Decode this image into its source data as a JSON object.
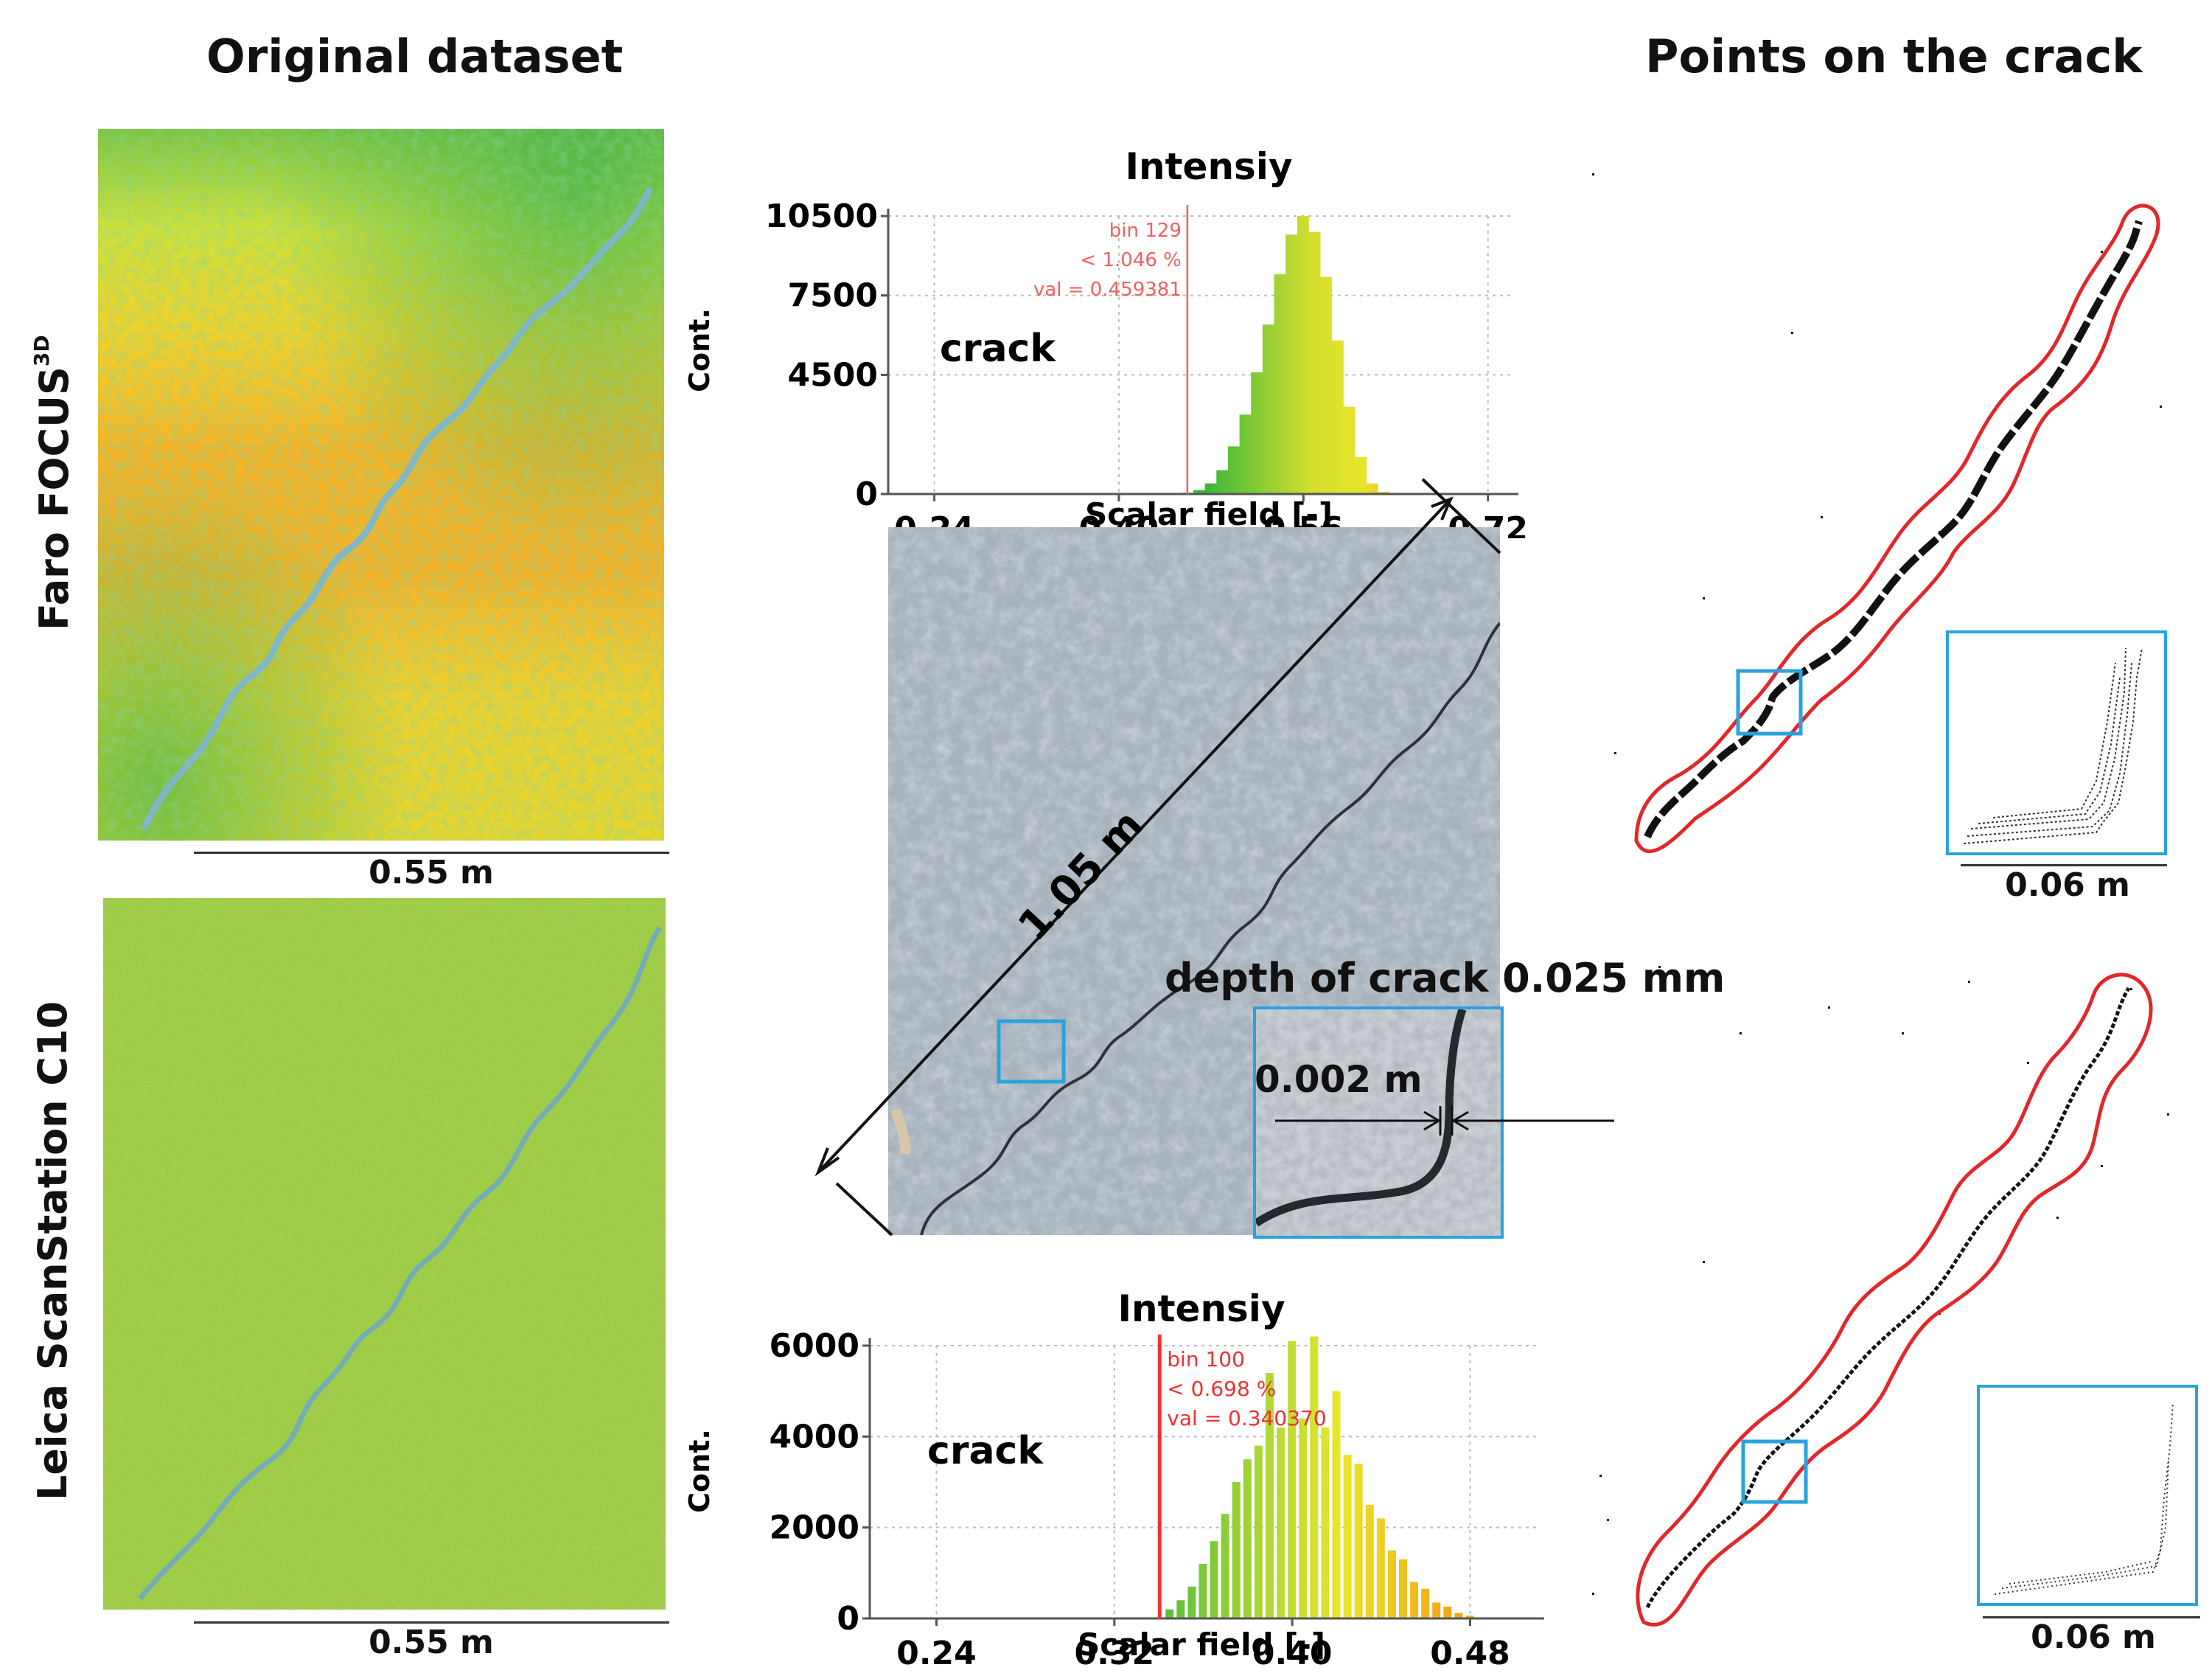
{
  "columns": {
    "left_title": "Original dataset",
    "right_title": "Points on the crack"
  },
  "rows": {
    "top_scanner": "Faro FOCUS",
    "top_scanner_sup": "3D",
    "bottom_scanner": "Leica ScanStation C10"
  },
  "scalebars": {
    "left_top": "0.55 m",
    "left_bottom": "0.55 m",
    "right_top": "0.06 m",
    "right_bottom": "0.06 m"
  },
  "photo": {
    "length_label": "1.05 m",
    "depth_label": "depth of crack  0.025  mm",
    "width_label": "0.002 m"
  },
  "colors": {
    "accent_blue": "#29a3dd",
    "outline_red": "#e0282b",
    "histogram_green": "#3fb83a",
    "histogram_yellow": "#e8e42a",
    "histogram_orange": "#f4a417"
  },
  "chart_data": [
    {
      "type": "bar",
      "title": "Intensiy",
      "xlabel": "Scalar field  [-]",
      "ylabel": "Cont.",
      "xlim": [
        0.2,
        0.74
      ],
      "ylim": [
        0,
        10500
      ],
      "x_ticks": [
        "0.24",
        "0.40",
        "0.56",
        "0.72"
      ],
      "y_ticks": [
        "10500",
        "7500",
        "4500",
        "0"
      ],
      "annotation": "crack",
      "threshold": {
        "x": 0.459381,
        "lines": [
          "bin 129",
          "< 1.046 %",
          "val = 0.459381"
        ]
      },
      "x": [
        0.46,
        0.47,
        0.48,
        0.49,
        0.5,
        0.51,
        0.52,
        0.53,
        0.54,
        0.55,
        0.56,
        0.57,
        0.58,
        0.59,
        0.6,
        0.61,
        0.62,
        0.63
      ],
      "values": [
        50,
        150,
        400,
        900,
        1800,
        3000,
        4600,
        6400,
        8300,
        9800,
        10500,
        9900,
        8200,
        5800,
        3300,
        1400,
        400,
        80
      ]
    },
    {
      "type": "bar",
      "title": "Intensiy",
      "xlabel": "Scalar field  [-]",
      "ylabel": "Cont.",
      "xlim": [
        0.21,
        0.51
      ],
      "ylim": [
        0,
        6000
      ],
      "x_ticks": [
        "0.24",
        "0.32",
        "0.40",
        "0.48"
      ],
      "y_ticks": [
        "6000",
        "4000",
        "2000",
        "0"
      ],
      "annotation": "crack",
      "threshold": {
        "x": 0.34037,
        "lines": [
          "bin 100",
          "< 0.698 %",
          "val = 0.340370"
        ]
      },
      "x": [
        0.345,
        0.35,
        0.355,
        0.36,
        0.365,
        0.37,
        0.375,
        0.38,
        0.385,
        0.39,
        0.395,
        0.4,
        0.405,
        0.41,
        0.415,
        0.42,
        0.425,
        0.43,
        0.435,
        0.44,
        0.445,
        0.45,
        0.455,
        0.46,
        0.465,
        0.47,
        0.475,
        0.48
      ],
      "values": [
        200,
        400,
        700,
        1200,
        1700,
        2300,
        3000,
        3500,
        3800,
        5400,
        4200,
        6100,
        4400,
        6200,
        4200,
        5000,
        3600,
        3400,
        2500,
        2200,
        1500,
        1300,
        800,
        650,
        350,
        260,
        120,
        60
      ]
    }
  ]
}
